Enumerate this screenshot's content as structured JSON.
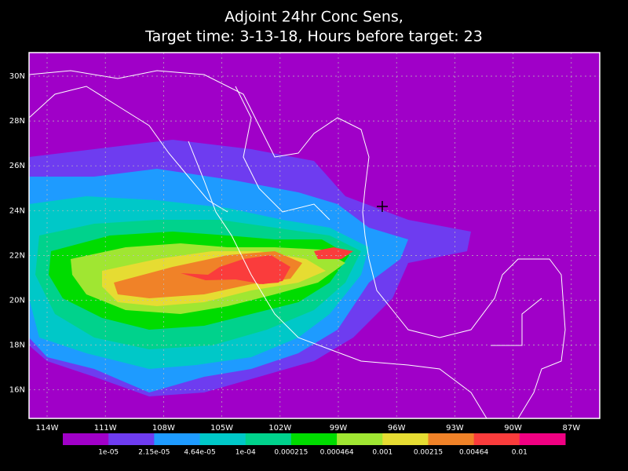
{
  "title": [
    "Adjoint 24hr Conc Sens,",
    "Target time: 3-13-18, Hours before target: 23"
  ],
  "lon_labels": [
    "114W",
    "111W",
    "108W",
    "105W",
    "102W",
    "99W",
    "96W",
    "93W",
    "90W",
    "87W"
  ],
  "lat_labels": [
    "30N",
    "28N",
    "26N",
    "24N",
    "22N",
    "20N",
    "18N",
    "16N"
  ],
  "colorbar": {
    "colors": [
      "#a000c8",
      "#6e3cf0",
      "#1e9bff",
      "#00c8c8",
      "#00d28c",
      "#00dc00",
      "#a0e632",
      "#e6dc32",
      "#f08228",
      "#fa3c3c",
      "#f00082"
    ],
    "labels": [
      "1e-05",
      "2.15e-05",
      "4.64e-05",
      "1e-04",
      "0.000215",
      "0.000464",
      "0.001",
      "0.00215",
      "0.00464",
      "0.01"
    ]
  }
}
